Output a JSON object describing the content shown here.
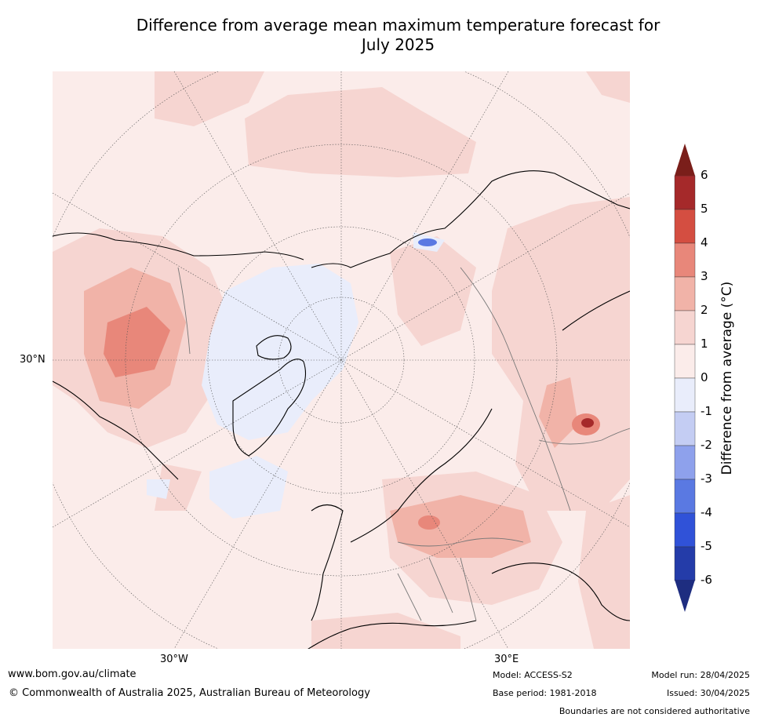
{
  "title_line1": "Difference from average mean maximum temperature forecast for",
  "title_line2": "July 2025",
  "labels": {
    "lat_30n": "30°N",
    "lon_30w": "30°W",
    "lon_30e": "30°E"
  },
  "colorbar": {
    "title": "Difference from average (°C)",
    "ticks": [
      "6",
      "5",
      "4",
      "3",
      "2",
      "1",
      "0",
      "-1",
      "-2",
      "-3",
      "-4",
      "-5",
      "-6"
    ],
    "colors": [
      "#a5292a",
      "#d44e41",
      "#e8877a",
      "#f1b3a8",
      "#f6d5d1",
      "#fbecea",
      "#e9edfb",
      "#c4cdf3",
      "#8ea1ec",
      "#5a79e2",
      "#3052d8",
      "#243ca9"
    ],
    "extend_high_color": "#7a1e1a",
    "extend_low_color": "#1e2d80"
  },
  "footer": {
    "website": "www.bom.gov.au/climate",
    "copyright": "© Commonwealth of Australia 2025, Australian Bureau of Meteorology",
    "model": "Model: ACCESS-S2",
    "base_period": "Base period: 1981-2018",
    "model_run": "Model run: 28/04/2025",
    "issued": "Issued: 30/04/2025",
    "disclaimer": "Boundaries are not considered authoritative"
  }
}
